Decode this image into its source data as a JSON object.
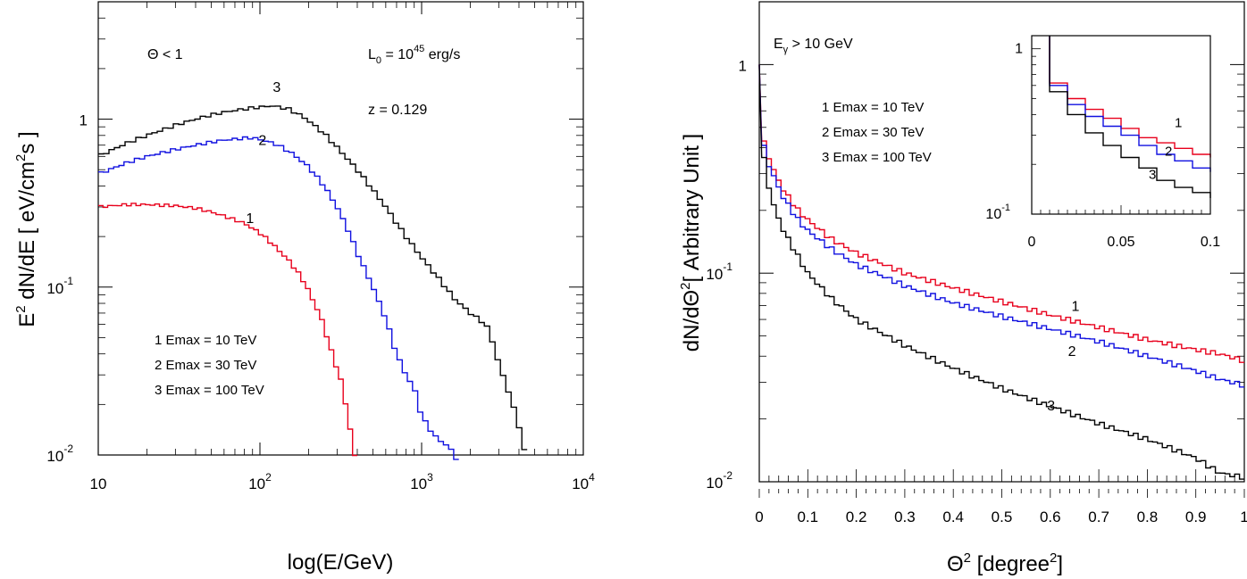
{
  "colors": {
    "curve_1": "#e8001c",
    "curve_2": "#1010e0",
    "curve_3": "#000000",
    "frame": "#000000"
  },
  "chart_data": [
    {
      "type": "line",
      "subtype": "step-histogram",
      "ylabel_parts": {
        "main": "E",
        "sup": "2",
        "mid": " dN/dE [ eV/cm",
        "sup2": "2",
        "end": "s ]"
      },
      "xlabel": "log(E/GeV)",
      "xscale": "log",
      "yscale": "log",
      "xlim": [
        10,
        10000
      ],
      "ylim": [
        0.01,
        5
      ],
      "x_ticks": [
        {
          "v": 10,
          "base": "10",
          "exp": ""
        },
        {
          "v": 100,
          "base": "10",
          "exp": "2"
        },
        {
          "v": 1000,
          "base": "10",
          "exp": "3"
        },
        {
          "v": 10000,
          "base": "10",
          "exp": "4"
        }
      ],
      "y_ticks": [
        {
          "v": 0.01,
          "base": "10",
          "exp": "-2"
        },
        {
          "v": 0.1,
          "base": "10",
          "exp": "-1"
        },
        {
          "v": 1,
          "base": "1",
          "exp": ""
        }
      ],
      "annotations": {
        "theta": "Θ < 1",
        "lum_main": "L",
        "lum_sub": "0",
        "lum_eq": " = 10",
        "lum_exp": "45",
        "lum_unit": " erg/s",
        "redshift": "z = 0.129"
      },
      "legend": [
        "1  Emax = 10 TeV",
        "2  Emax = 30 TeV",
        "3  Emax = 100 TeV"
      ],
      "legend_placement": "lower-left",
      "series": [
        {
          "name": "1",
          "color_key": "curve_1",
          "label_at": [
            82,
            0.24
          ],
          "points": [
            [
              10,
              0.3
            ],
            [
              15,
              0.31
            ],
            [
              20,
              0.31
            ],
            [
              30,
              0.305
            ],
            [
              40,
              0.295
            ],
            [
              50,
              0.28
            ],
            [
              60,
              0.265
            ],
            [
              80,
              0.24
            ],
            [
              100,
              0.21
            ],
            [
              120,
              0.18
            ],
            [
              150,
              0.145
            ],
            [
              180,
              0.115
            ],
            [
              200,
              0.095
            ],
            [
              240,
              0.065
            ],
            [
              280,
              0.04
            ],
            [
              320,
              0.027
            ],
            [
              350,
              0.017
            ],
            [
              380,
              0.011
            ],
            [
              400,
              0.008
            ]
          ]
        },
        {
          "name": "2",
          "color_key": "curve_2",
          "label_at": [
            98,
            0.7
          ],
          "points": [
            [
              10,
              0.47
            ],
            [
              15,
              0.55
            ],
            [
              20,
              0.6
            ],
            [
              30,
              0.66
            ],
            [
              40,
              0.7
            ],
            [
              50,
              0.73
            ],
            [
              60,
              0.75
            ],
            [
              80,
              0.77
            ],
            [
              90,
              0.775
            ],
            [
              110,
              0.74
            ],
            [
              130,
              0.7
            ],
            [
              160,
              0.62
            ],
            [
              200,
              0.52
            ],
            [
              250,
              0.4
            ],
            [
              300,
              0.3
            ],
            [
              350,
              0.22
            ],
            [
              400,
              0.16
            ],
            [
              500,
              0.1
            ],
            [
              600,
              0.065
            ],
            [
              700,
              0.04
            ],
            [
              800,
              0.03
            ],
            [
              900,
              0.025
            ],
            [
              1000,
              0.017
            ],
            [
              1200,
              0.013
            ],
            [
              1500,
              0.011
            ],
            [
              1700,
              0.009
            ]
          ]
        },
        {
          "name": "3",
          "color_key": "curve_3",
          "label_at": [
            120,
            1.45
          ],
          "points": [
            [
              10,
              0.6
            ],
            [
              15,
              0.72
            ],
            [
              20,
              0.8
            ],
            [
              30,
              0.92
            ],
            [
              40,
              1.0
            ],
            [
              50,
              1.06
            ],
            [
              60,
              1.1
            ],
            [
              80,
              1.15
            ],
            [
              100,
              1.18
            ],
            [
              120,
              1.2
            ],
            [
              150,
              1.15
            ],
            [
              180,
              1.05
            ],
            [
              200,
              0.98
            ],
            [
              250,
              0.82
            ],
            [
              300,
              0.68
            ],
            [
              400,
              0.5
            ],
            [
              500,
              0.38
            ],
            [
              600,
              0.3
            ],
            [
              700,
              0.24
            ],
            [
              800,
              0.2
            ],
            [
              1000,
              0.15
            ],
            [
              1300,
              0.11
            ],
            [
              1600,
              0.085
            ],
            [
              2000,
              0.07
            ],
            [
              2500,
              0.06
            ],
            [
              2800,
              0.045
            ],
            [
              3000,
              0.035
            ],
            [
              3500,
              0.023
            ],
            [
              4000,
              0.015
            ],
            [
              4500,
              0.009
            ]
          ]
        }
      ]
    },
    {
      "type": "line",
      "subtype": "step-histogram",
      "ylabel_parts": {
        "main": "dN/dΘ",
        "sup": "2",
        "end": "[ Arbitrary Unit ]"
      },
      "xlabel_parts": {
        "main": "Θ",
        "sup": "2",
        "mid": " [degree",
        "sup2": "2",
        "end": "]"
      },
      "xscale": "linear",
      "yscale": "log",
      "xlim": [
        0,
        1
      ],
      "ylim": [
        0.01,
        2
      ],
      "x_ticks": [
        "0",
        "0.1",
        "0.2",
        "0.3",
        "0.4",
        "0.5",
        "0.6",
        "0.7",
        "0.8",
        "0.9",
        "1"
      ],
      "y_ticks": [
        {
          "v": 0.01,
          "base": "10",
          "exp": "-2"
        },
        {
          "v": 0.1,
          "base": "10",
          "exp": "-1"
        },
        {
          "v": 1,
          "base": "1",
          "exp": ""
        }
      ],
      "annotations": {
        "egamma_main": "E",
        "egamma_sub": "γ",
        "egamma_rest": " > 10 GeV"
      },
      "legend": [
        "1  Emax = 10 TeV",
        "2  Emax = 30 TeV",
        "3  Emax = 100 TeV"
      ],
      "legend_placement": "top-left",
      "series": [
        {
          "name": "1",
          "color_key": "curve_1",
          "label_at": [
            0.5,
            0.066
          ],
          "points": [
            [
              0,
              1.0
            ],
            [
              0.01,
              0.42
            ],
            [
              0.02,
              0.36
            ],
            [
              0.03,
              0.31
            ],
            [
              0.05,
              0.25
            ],
            [
              0.08,
              0.2
            ],
            [
              0.1,
              0.18
            ],
            [
              0.15,
              0.145
            ],
            [
              0.2,
              0.125
            ],
            [
              0.3,
              0.1
            ],
            [
              0.4,
              0.085
            ],
            [
              0.5,
              0.073
            ],
            [
              0.6,
              0.063
            ],
            [
              0.7,
              0.055
            ],
            [
              0.8,
              0.048
            ],
            [
              0.9,
              0.043
            ],
            [
              0.95,
              0.041
            ],
            [
              1.0,
              0.038
            ]
          ]
        },
        {
          "name": "2",
          "color_key": "curve_2",
          "label_at": [
            0.5,
            0.04
          ],
          "points": [
            [
              0,
              1.0
            ],
            [
              0.01,
              0.4
            ],
            [
              0.02,
              0.33
            ],
            [
              0.03,
              0.29
            ],
            [
              0.05,
              0.23
            ],
            [
              0.08,
              0.18
            ],
            [
              0.1,
              0.16
            ],
            [
              0.15,
              0.13
            ],
            [
              0.2,
              0.11
            ],
            [
              0.3,
              0.087
            ],
            [
              0.4,
              0.072
            ],
            [
              0.5,
              0.062
            ],
            [
              0.6,
              0.054
            ],
            [
              0.7,
              0.047
            ],
            [
              0.8,
              0.04
            ],
            [
              0.9,
              0.034
            ],
            [
              0.95,
              0.031
            ],
            [
              1.0,
              0.029
            ]
          ]
        },
        {
          "name": "3",
          "color_key": "curve_3",
          "label_at": [
            0.5,
            0.022
          ],
          "points": [
            [
              0,
              1.0
            ],
            [
              0.01,
              0.35
            ],
            [
              0.02,
              0.26
            ],
            [
              0.03,
              0.21
            ],
            [
              0.05,
              0.16
            ],
            [
              0.08,
              0.12
            ],
            [
              0.1,
              0.1
            ],
            [
              0.15,
              0.075
            ],
            [
              0.2,
              0.06
            ],
            [
              0.3,
              0.045
            ],
            [
              0.4,
              0.035
            ],
            [
              0.5,
              0.028
            ],
            [
              0.6,
              0.023
            ],
            [
              0.7,
              0.019
            ],
            [
              0.8,
              0.016
            ],
            [
              0.9,
              0.013
            ],
            [
              0.95,
              0.011
            ],
            [
              1.0,
              0.0105
            ]
          ]
        }
      ],
      "inset": {
        "xlim": [
          0,
          0.1
        ],
        "ylim": [
          0.1,
          1.2
        ],
        "x_ticks": [
          "0",
          "0.05",
          "0.1"
        ],
        "y_ticks": [
          {
            "v": 0.1,
            "base": "10",
            "exp": "-1"
          },
          {
            "v": 1,
            "base": "1",
            "exp": ""
          }
        ],
        "series": [
          {
            "name": "1",
            "color_key": "curve_1",
            "label_at": [
              0.08,
              0.32
            ],
            "points": [
              [
                0.005,
                1.2
              ],
              [
                0.01,
                0.62
              ],
              [
                0.02,
                0.5
              ],
              [
                0.03,
                0.43
              ],
              [
                0.04,
                0.38
              ],
              [
                0.05,
                0.33
              ],
              [
                0.06,
                0.29
              ],
              [
                0.07,
                0.27
              ],
              [
                0.08,
                0.25
              ],
              [
                0.09,
                0.23
              ],
              [
                0.1,
                0.22
              ]
            ]
          },
          {
            "name": "2",
            "color_key": "curve_2",
            "label_at": [
              0.0745,
              0.215
            ],
            "points": [
              [
                0.005,
                1.2
              ],
              [
                0.01,
                0.6
              ],
              [
                0.02,
                0.46
              ],
              [
                0.03,
                0.39
              ],
              [
                0.04,
                0.34
              ],
              [
                0.05,
                0.3
              ],
              [
                0.06,
                0.26
              ],
              [
                0.07,
                0.23
              ],
              [
                0.08,
                0.21
              ],
              [
                0.09,
                0.19
              ],
              [
                0.1,
                0.18
              ]
            ]
          },
          {
            "name": "3",
            "color_key": "curve_3",
            "label_at": [
              0.0655,
              0.155
            ],
            "points": [
              [
                0.005,
                1.2
              ],
              [
                0.01,
                0.55
              ],
              [
                0.02,
                0.4
              ],
              [
                0.03,
                0.31
              ],
              [
                0.04,
                0.26
              ],
              [
                0.05,
                0.22
              ],
              [
                0.06,
                0.19
              ],
              [
                0.07,
                0.16
              ],
              [
                0.08,
                0.145
              ],
              [
                0.09,
                0.135
              ],
              [
                0.1,
                0.125
              ]
            ]
          }
        ]
      }
    }
  ]
}
